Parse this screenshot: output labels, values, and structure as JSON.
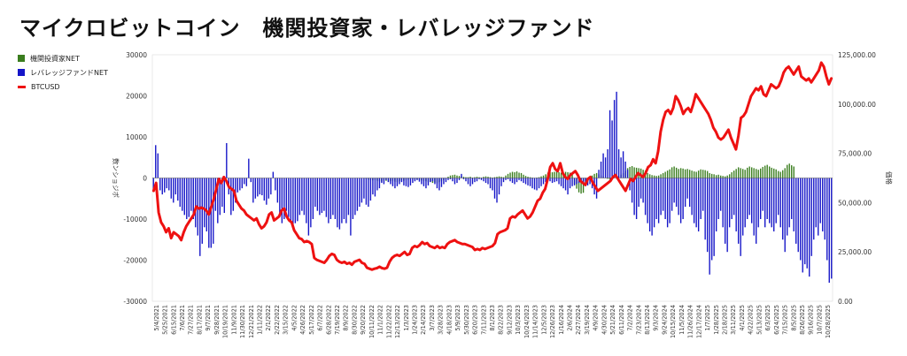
{
  "title": "マイクロビットコイン　機関投資家・レバレッジファンド",
  "chart_data": {
    "type": "bar",
    "title": "マイクロビットコイン　機関投資家・レバレッジファンド",
    "ylabel_left": "数ンショジポ",
    "ylabel_right": "価格",
    "ylim_left": [
      -30000,
      30000
    ],
    "ylim_right": [
      0,
      125000
    ],
    "left_ticks": [
      "30000",
      "20000",
      "10000",
      "0",
      "-10000",
      "-20000",
      "-30000"
    ],
    "right_ticks": [
      "125,000.00",
      "100,000.00",
      "75,000.00",
      "50,000.00",
      "25,000.00",
      "0.00"
    ],
    "legend": [
      {
        "name": "機関投資家NET",
        "color": "#3a7d1e",
        "kind": "bar"
      },
      {
        "name": "レバレッジファンドNET",
        "color": "#1515c8",
        "kind": "bar"
      },
      {
        "name": "BTCUSD",
        "color": "#ee1111",
        "kind": "line"
      }
    ],
    "x_labels": [
      "5/4/2021",
      "5/25/2021",
      "6/15/2021",
      "7/6/2021",
      "7/27/2021",
      "8/17/2021",
      "9/7/2021",
      "9/28/2021",
      "10/19/2021",
      "11/9/2021",
      "11/30/2021",
      "12/21/2021",
      "1/11/2022",
      "2/1/2022",
      "2/22/2022",
      "3/15/2022",
      "4/5/2022",
      "4/26/2022",
      "5/17/2022",
      "6/7/2022",
      "6/28/2022",
      "7/19/2022",
      "8/9/2022",
      "8/30/2022",
      "9/20/2022",
      "10/11/2022",
      "11/1/2022",
      "11/22/2022",
      "12/13/2022",
      "1/3/2023",
      "1/24/2023",
      "2/14/2023",
      "3/7/2023",
      "3/28/2023",
      "4/18/2023",
      "5/9/2023",
      "5/30/2023",
      "6/20/2023",
      "7/11/2023",
      "8/1/2023",
      "8/22/2023",
      "9/12/2023",
      "10/3/2023",
      "10/24/2023",
      "11/14/2023",
      "12/5/2023",
      "12/26/2023",
      "1/16/2024",
      "2/6/2024",
      "2/27/2024",
      "3/19/2024",
      "4/9/2024",
      "4/30/2024",
      "5/21/2024",
      "6/11/2024",
      "7/2/2024",
      "7/23/2024",
      "8/13/2024",
      "9/3/2024",
      "9/24/2024",
      "10/15/2024",
      "11/5/2024",
      "11/26/2024",
      "12/17/2024",
      "1/7/2025",
      "1/28/2025",
      "2/18/2025",
      "3/11/2025",
      "4/1/2025",
      "4/22/2025",
      "5/13/2025",
      "6/3/2025",
      "6/24/2025",
      "7/15/2025",
      "8/5/2025",
      "8/26/2025",
      "9/16/2025",
      "10/7/2025",
      "10/28/2025"
    ],
    "series": [
      {
        "name": "機関投資家NET",
        "values": [
          0,
          0,
          0,
          0,
          0,
          0,
          0,
          0,
          0,
          0,
          0,
          0,
          0,
          0,
          0,
          0,
          0,
          0,
          0,
          0,
          0,
          0,
          0,
          0,
          0,
          0,
          0,
          0,
          0,
          0,
          0,
          0,
          0,
          0,
          0,
          0,
          0,
          0,
          0,
          0,
          0,
          0,
          0,
          0,
          0,
          0,
          0,
          0,
          0,
          0,
          0,
          0,
          0,
          0,
          0,
          0,
          0,
          0,
          0,
          0,
          0,
          0,
          0,
          0,
          0,
          0,
          0,
          0,
          0,
          0,
          0,
          0,
          0,
          0,
          0,
          0,
          0,
          0,
          0,
          0,
          0,
          0,
          0,
          0,
          0,
          0,
          0,
          0,
          0,
          0,
          0,
          0,
          0,
          0,
          0,
          0,
          -300,
          -400,
          -500,
          -600,
          -500,
          -700,
          -800,
          -900,
          -600,
          -700,
          -900,
          -800,
          -700,
          -900,
          -1000,
          -800,
          -600,
          -700,
          -500,
          -400,
          -300,
          -200,
          -300,
          -400,
          -500,
          -600,
          -700,
          -800,
          -1000,
          -900,
          -1200,
          -1100,
          -1300,
          -1000,
          -800,
          -500,
          -200,
          300,
          600,
          700,
          800,
          600,
          500,
          400,
          300,
          200,
          200,
          300,
          100,
          200,
          300,
          200,
          100,
          300,
          400,
          300,
          200,
          100,
          200,
          300,
          400,
          300,
          200,
          600,
          1000,
          1300,
          1500,
          1400,
          1600,
          1300,
          1200,
          800,
          500,
          300,
          200,
          100,
          0,
          100,
          200,
          400,
          600,
          900,
          1300,
          1500,
          1400,
          1500,
          1600,
          1400,
          1300,
          1200,
          1500,
          1400,
          1300,
          1000,
          -1500,
          -2600,
          -3500,
          -3800,
          -3600,
          -1500,
          -800,
          200,
          600,
          1000,
          1200,
          900,
          600,
          300,
          100,
          -200,
          -400,
          -300,
          0,
          200,
          400,
          800,
          1200,
          1700,
          2400,
          2700,
          2900,
          2600,
          2500,
          2400,
          2300,
          2000,
          1800,
          1200,
          900,
          700,
          600,
          500,
          600,
          900,
          1200,
          1500,
          1800,
          2100,
          2600,
          2800,
          2500,
          2200,
          2400,
          2300,
          2100,
          2200,
          2000,
          1800,
          1600,
          1500,
          1800,
          2100,
          2000,
          1900,
          1700,
          1200,
          1000,
          900,
          700,
          800,
          600,
          500,
          400,
          600,
          900,
          1400,
          1800,
          2200,
          2600,
          2400,
          2200,
          2000,
          2500,
          2800,
          2600,
          2400,
          2200,
          2000,
          2300,
          2700,
          3000,
          3200,
          2800,
          2500,
          2300,
          2100,
          1700,
          1500,
          1900,
          2400,
          3200,
          3500,
          3100,
          2800
        ]
      },
      {
        "name": "レバレッジファンドNET",
        "values": [
          -3000,
          8000,
          6000,
          -3000,
          -4000,
          -3500,
          -2500,
          -3000,
          -5000,
          -6000,
          -4000,
          -5500,
          -7000,
          -8000,
          -9000,
          -10000,
          -9500,
          -8000,
          -10000,
          -12000,
          -14000,
          -19000,
          -16000,
          -12000,
          -13000,
          -17000,
          -17000,
          -16000,
          -8000,
          -11000,
          -9000,
          -7000,
          -8500,
          8500,
          -4000,
          -9000,
          -8000,
          -6000,
          -3500,
          -3000,
          -2500,
          -1500,
          -2000,
          4700,
          -1000,
          -6000,
          -5000,
          -4500,
          -4000,
          -4200,
          -5500,
          -6500,
          -5000,
          -4000,
          1500,
          -3000,
          -6000,
          -9000,
          -11000,
          -10000,
          -8000,
          -9500,
          -11000,
          -12000,
          -11000,
          -10500,
          -9000,
          -8000,
          -9000,
          -11000,
          -14000,
          -12000,
          -10000,
          -7000,
          -8000,
          -9000,
          -8500,
          -8000,
          -9500,
          -11000,
          -10000,
          -9000,
          -10000,
          -12000,
          -12500,
          -11000,
          -10000,
          -11000,
          -9000,
          -14000,
          -10000,
          -9000,
          -8000,
          -7000,
          -6000,
          -5000,
          -6500,
          -7000,
          -5500,
          -4000,
          -4500,
          -3000,
          -2500,
          -1200,
          -1500,
          -500,
          -1000,
          -1500,
          -2000,
          -2500,
          -2000,
          -1500,
          -1000,
          -1800,
          -2000,
          -2200,
          -1800,
          -1200,
          -800,
          -500,
          -900,
          -1500,
          -2000,
          -2500,
          -1800,
          -1000,
          -800,
          -1500,
          -2500,
          -3000,
          -2200,
          -1500,
          -1000,
          -500,
          -300,
          -800,
          -1500,
          -1200,
          -500,
          1000,
          -300,
          -800,
          -1500,
          -2000,
          -1500,
          -1000,
          -800,
          -300,
          -500,
          -800,
          -1200,
          -1500,
          -2500,
          -3000,
          -5000,
          -6000,
          -4000,
          -2000,
          -1000,
          -500,
          -300,
          -800,
          -1200,
          -1500,
          -1000,
          -500,
          -800,
          -1200,
          -1500,
          -1800,
          -2000,
          -2500,
          -2800,
          -3000,
          -2500,
          -2000,
          -1500,
          -1000,
          -500,
          -800,
          -1200,
          -1000,
          -800,
          -1500,
          -2000,
          -2500,
          -3000,
          -4000,
          -2500,
          -2000,
          -1800,
          -1500,
          -1200,
          -1000,
          -1500,
          -2000,
          -1800,
          -1500,
          -2500,
          -4000,
          -5000,
          2000,
          4000,
          6000,
          5000,
          7000,
          16500,
          14000,
          19000,
          21000,
          7000,
          5000,
          6500,
          4000,
          2000,
          -3000,
          -6000,
          -9000,
          -10000,
          -7000,
          -5000,
          -6000,
          -9000,
          -11000,
          -13000,
          -14000,
          -12000,
          -10000,
          -11000,
          -9000,
          -8000,
          -10000,
          -12000,
          -11000,
          -8000,
          -6000,
          -7000,
          -9000,
          -11000,
          -10000,
          -7000,
          -5000,
          -7000,
          -9000,
          -11000,
          -12000,
          -13000,
          -10000,
          -8000,
          -15000,
          -18000,
          -23500,
          -20000,
          -19000,
          -13000,
          -10000,
          -8000,
          -12000,
          -16000,
          -18000,
          -12000,
          -10000,
          -9000,
          -13000,
          -16000,
          -19000,
          -14000,
          -12000,
          -10000,
          -9000,
          -11000,
          -14000,
          -16000,
          -12000,
          -10000,
          -8000,
          -12000,
          -10000,
          -11000,
          -12000,
          -13000,
          -11000,
          -9000,
          -12000,
          -15000,
          -18000,
          -14000,
          -12000,
          -10000,
          -13000,
          -16000,
          -18000,
          -20000,
          -23000,
          -21000,
          -22000,
          -24000,
          -19000,
          -15000,
          -12000,
          -14000,
          -11000,
          -13000,
          -15000,
          -20000,
          -25500,
          -24500
        ]
      },
      {
        "name": "BTCUSD",
        "values": [
          56000,
          60000,
          45000,
          40000,
          38000,
          35000,
          37000,
          32000,
          35000,
          34000,
          33000,
          31000,
          35000,
          38000,
          40000,
          42000,
          44000,
          48000,
          47000,
          47500,
          47000,
          46000,
          44000,
          48000,
          52000,
          57000,
          62000,
          60000,
          63000,
          61000,
          58000,
          57000,
          56000,
          51000,
          49000,
          47000,
          46000,
          44000,
          43000,
          42000,
          41000,
          42000,
          39000,
          37000,
          38000,
          40000,
          44000,
          45000,
          41000,
          42000,
          43000,
          46000,
          47000,
          43000,
          41000,
          40000,
          36000,
          34000,
          32000,
          31500,
          30000,
          30500,
          30000,
          29000,
          22000,
          21000,
          20500,
          20000,
          19500,
          21000,
          23000,
          24000,
          23500,
          21000,
          20000,
          19500,
          20000,
          19000,
          19500,
          18500,
          20000,
          20500,
          21000,
          19500,
          19000,
          17000,
          16500,
          16000,
          16500,
          16800,
          17500,
          16800,
          16500,
          17000,
          20000,
          22000,
          23000,
          23500,
          23000,
          24000,
          25000,
          23500,
          24000,
          27000,
          28000,
          27500,
          28500,
          30000,
          29000,
          29500,
          28000,
          27500,
          27000,
          28000,
          27000,
          27500,
          27000,
          29000,
          30000,
          30500,
          31000,
          30000,
          29500,
          29000,
          29000,
          28500,
          28000,
          27500,
          26000,
          26500,
          26000,
          27000,
          26500,
          27000,
          27500,
          28000,
          29500,
          34000,
          35000,
          35500,
          36000,
          37000,
          42000,
          43000,
          42500,
          44000,
          45000,
          46000,
          44000,
          42000,
          43000,
          45000,
          48000,
          51000,
          52000,
          55000,
          57000,
          62000,
          68000,
          70000,
          67000,
          66000,
          70000,
          65000,
          63000,
          62000,
          64000,
          65000,
          66000,
          64000,
          61000,
          60000,
          59000,
          62000,
          63000,
          60000,
          58000,
          56000,
          57000,
          58000,
          59000,
          60000,
          61000,
          63000,
          64000,
          62000,
          60000,
          58000,
          56000,
          59000,
          62000,
          61000,
          63000,
          65000,
          64000,
          63000,
          65000,
          68000,
          69000,
          72000,
          70000,
          76000,
          86000,
          92000,
          96000,
          97000,
          95000,
          98000,
          104000,
          102000,
          99000,
          95000,
          97000,
          98000,
          96000,
          100000,
          105000,
          103000,
          101000,
          99000,
          97000,
          95000,
          92000,
          88000,
          86000,
          83000,
          82000,
          83000,
          85000,
          87000,
          83000,
          80000,
          77000,
          84000,
          93000,
          94000,
          96000,
          100000,
          104000,
          106000,
          108000,
          107000,
          109000,
          105000,
          104000,
          107000,
          110000,
          109000,
          108000,
          109000,
          112000,
          116000,
          118000,
          119000,
          117000,
          115000,
          117000,
          119000,
          114000,
          113000,
          112000,
          113000,
          111000,
          113000,
          115000,
          117000,
          121000,
          119000,
          114000,
          110000,
          113000
        ]
      }
    ]
  }
}
